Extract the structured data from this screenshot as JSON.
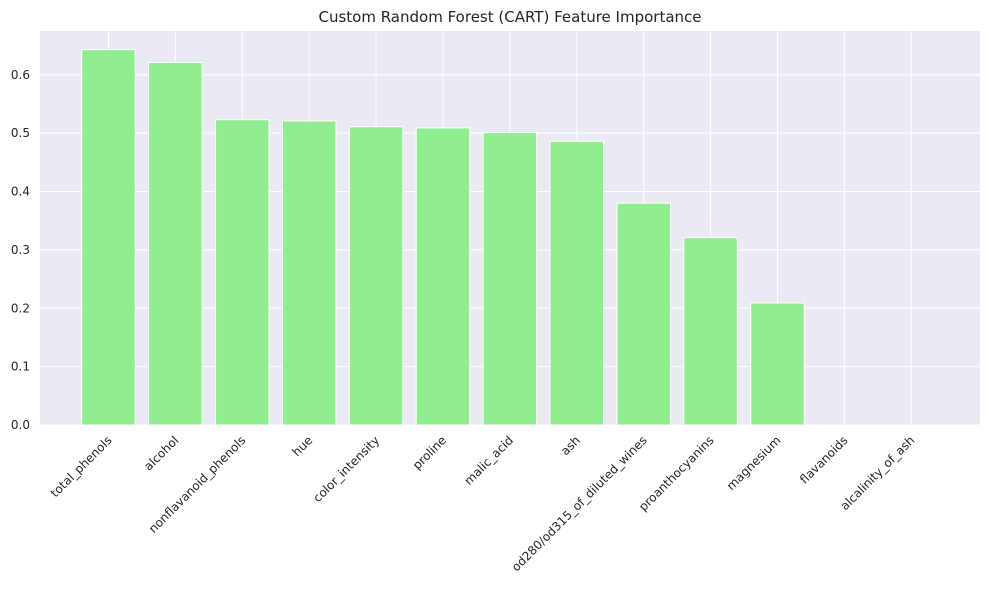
{
  "chart_data": {
    "type": "bar",
    "title": "Custom Random Forest (CART) Feature Importance",
    "xlabel": "",
    "ylabel": "",
    "categories": [
      "total_phenols",
      "alcohol",
      "nonflavanoid_phenols",
      "hue",
      "color_intensity",
      "proline",
      "malic_acid",
      "ash",
      "od280/od315_of_diluted_wines",
      "proanthocyanins",
      "magnesium",
      "flavanoids",
      "alcalinity_of_ash"
    ],
    "values": [
      0.643,
      0.621,
      0.523,
      0.521,
      0.511,
      0.509,
      0.501,
      0.486,
      0.38,
      0.321,
      0.209,
      0.0,
      0.0
    ],
    "ylim": [
      0,
      0.675
    ],
    "yticks": [
      "0.0",
      "0.1",
      "0.2",
      "0.3",
      "0.4",
      "0.5",
      "0.6"
    ],
    "grid": true,
    "bar_color": "#90ee90",
    "background_color": "#eaeaf2",
    "grid_color": "#ffffff"
  }
}
